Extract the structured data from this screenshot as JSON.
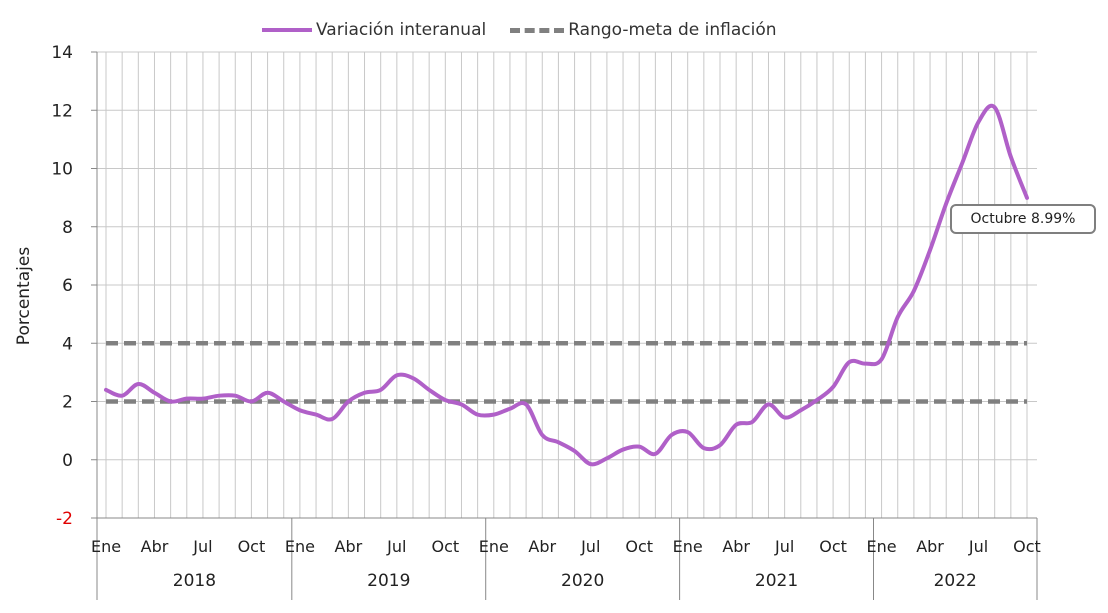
{
  "chart_data": {
    "type": "line",
    "title": "",
    "xlabel": "",
    "ylabel": "Porcentajes",
    "ylim": [
      -2,
      14
    ],
    "yticks": [
      -2,
      0,
      2,
      4,
      6,
      8,
      10,
      12,
      14
    ],
    "grid": "vertical minor lines per month, horizontal major lines",
    "legend_position": "top",
    "x_month_labels": [
      "Ene",
      "Abr",
      "Jul",
      "Oct"
    ],
    "years": [
      "2018",
      "2019",
      "2020",
      "2021",
      "2022"
    ],
    "series": [
      {
        "name": "Variación interanual",
        "color": "#b060c8",
        "style": "solid",
        "x": [
          "2018-01",
          "2018-02",
          "2018-03",
          "2018-04",
          "2018-05",
          "2018-06",
          "2018-07",
          "2018-08",
          "2018-09",
          "2018-10",
          "2018-11",
          "2018-12",
          "2019-01",
          "2019-02",
          "2019-03",
          "2019-04",
          "2019-05",
          "2019-06",
          "2019-07",
          "2019-08",
          "2019-09",
          "2019-10",
          "2019-11",
          "2019-12",
          "2020-01",
          "2020-02",
          "2020-03",
          "2020-04",
          "2020-05",
          "2020-06",
          "2020-07",
          "2020-08",
          "2020-09",
          "2020-10",
          "2020-11",
          "2020-12",
          "2021-01",
          "2021-02",
          "2021-03",
          "2021-04",
          "2021-05",
          "2021-06",
          "2021-07",
          "2021-08",
          "2021-09",
          "2021-10",
          "2021-11",
          "2021-12",
          "2022-01",
          "2022-02",
          "2022-03",
          "2022-04",
          "2022-05",
          "2022-06",
          "2022-07",
          "2022-08",
          "2022-09",
          "2022-10"
        ],
        "values": [
          2.4,
          2.2,
          2.6,
          2.3,
          2.0,
          2.1,
          2.1,
          2.2,
          2.2,
          2.0,
          2.3,
          2.0,
          1.7,
          1.55,
          1.4,
          2.0,
          2.3,
          2.4,
          2.9,
          2.8,
          2.4,
          2.05,
          1.9,
          1.55,
          1.55,
          1.75,
          1.9,
          0.85,
          0.6,
          0.3,
          -0.15,
          0.05,
          0.35,
          0.45,
          0.2,
          0.85,
          0.95,
          0.4,
          0.5,
          1.2,
          1.3,
          1.9,
          1.45,
          1.7,
          2.05,
          2.5,
          3.35,
          3.3,
          3.45,
          4.9,
          5.8,
          7.2,
          8.8,
          10.2,
          11.6,
          12.1,
          10.4,
          8.99
        ]
      },
      {
        "name": "Rango-meta de inflación",
        "color": "#808080",
        "style": "dashed",
        "bounds": [
          2,
          4
        ]
      }
    ],
    "annotations": [
      {
        "label": "Octubre 8.99%"
      }
    ]
  }
}
